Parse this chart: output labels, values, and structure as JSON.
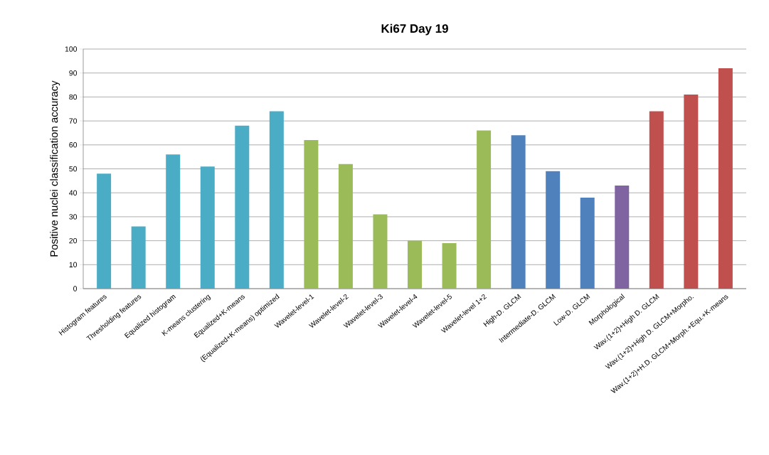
{
  "chart_data": {
    "type": "bar",
    "title": "Ki67 Day 19",
    "ylabel": "Positive nuclei classification accuracy",
    "categories": [
      "Histogram features",
      "Thresholding features",
      "Equalized histogram",
      "K-means clustering",
      "Equalized+K-means",
      "(Equalized+K-means) optimized",
      "Wavelet-level-1",
      "Wavelet-level-2",
      "Wavelet-level-3",
      "Wavelet-level-4",
      "Wavelet-level-5",
      "Wavelet-level 1+2",
      "High-D. GLCM",
      "Intermediate-D. GLCM",
      "Low-D. GLCM",
      "Morphological",
      "Wav.(1+2)+High D. GLCM",
      "Wav.(1+2)+High D. GLCM+Morpho.",
      "Wav.(1+2)+H.D. GLCM+Morph.+Equ.+K-means"
    ],
    "values": [
      48,
      26,
      56,
      51,
      68,
      74,
      62,
      52,
      31,
      20,
      19,
      66,
      64,
      49,
      38,
      43,
      74,
      81,
      92
    ],
    "colors": [
      "#4bacc6",
      "#4bacc6",
      "#4bacc6",
      "#4bacc6",
      "#4bacc6",
      "#4bacc6",
      "#9bbb59",
      "#9bbb59",
      "#9bbb59",
      "#9bbb59",
      "#9bbb59",
      "#9bbb59",
      "#4f81bd",
      "#4f81bd",
      "#4f81bd",
      "#8064a2",
      "#c0504d",
      "#c0504d",
      "#c0504d"
    ],
    "ylim": [
      0,
      100
    ],
    "yticks": [
      0,
      10,
      20,
      30,
      40,
      50,
      60,
      70,
      80,
      90,
      100
    ],
    "grid": "y"
  }
}
